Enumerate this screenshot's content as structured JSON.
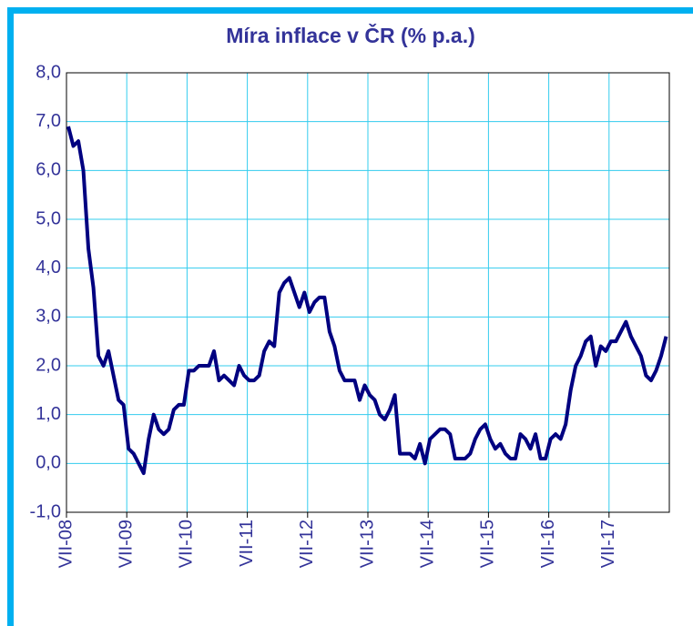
{
  "chart_data": {
    "type": "line",
    "title": "Míra inflace v ČR (% p.a.)",
    "categories": [
      "VII-08",
      null,
      null,
      null,
      null,
      null,
      null,
      null,
      null,
      null,
      null,
      null,
      "VII-09",
      null,
      null,
      null,
      null,
      null,
      null,
      null,
      null,
      null,
      null,
      null,
      "VII-10",
      null,
      null,
      null,
      null,
      null,
      null,
      null,
      null,
      null,
      null,
      null,
      "VII-11",
      null,
      null,
      null,
      null,
      null,
      null,
      null,
      null,
      null,
      null,
      null,
      "VII-12",
      null,
      null,
      null,
      null,
      null,
      null,
      null,
      null,
      null,
      null,
      null,
      "VII-13",
      null,
      null,
      null,
      null,
      null,
      null,
      null,
      null,
      null,
      null,
      null,
      "VII-14",
      null,
      null,
      null,
      null,
      null,
      null,
      null,
      null,
      null,
      null,
      null,
      "VII-15",
      null,
      null,
      null,
      null,
      null,
      null,
      null,
      null,
      null,
      null,
      null,
      "VII-16",
      null,
      null,
      null,
      null,
      null,
      null,
      null,
      null,
      null,
      null,
      null,
      "VII-17",
      null,
      null,
      null,
      null,
      null,
      null,
      null,
      null,
      null,
      null,
      null
    ],
    "values": [
      6.9,
      6.5,
      6.6,
      6.0,
      4.4,
      3.6,
      2.2,
      2.0,
      2.3,
      1.8,
      1.3,
      1.2,
      0.3,
      0.2,
      0.0,
      -0.2,
      0.5,
      1.0,
      0.7,
      0.6,
      0.7,
      1.1,
      1.2,
      1.2,
      1.9,
      1.9,
      2.0,
      2.0,
      2.0,
      2.3,
      1.7,
      1.8,
      1.7,
      1.6,
      2.0,
      1.8,
      1.7,
      1.7,
      1.8,
      2.3,
      2.5,
      2.4,
      3.5,
      3.7,
      3.8,
      3.5,
      3.2,
      3.5,
      3.1,
      3.3,
      3.4,
      3.4,
      2.7,
      2.4,
      1.9,
      1.7,
      1.7,
      1.7,
      1.3,
      1.6,
      1.4,
      1.3,
      1.0,
      0.9,
      1.1,
      1.4,
      0.2,
      0.2,
      0.2,
      0.1,
      0.4,
      0.0,
      0.5,
      0.6,
      0.7,
      0.7,
      0.6,
      0.1,
      0.1,
      0.1,
      0.2,
      0.5,
      0.7,
      0.8,
      0.5,
      0.3,
      0.4,
      0.2,
      0.1,
      0.1,
      0.6,
      0.5,
      0.3,
      0.6,
      0.1,
      0.1,
      0.5,
      0.6,
      0.5,
      0.8,
      1.5,
      2.0,
      2.2,
      2.5,
      2.6,
      2.0,
      2.4,
      2.3,
      2.5,
      2.5,
      2.7,
      2.9,
      2.6,
      2.4,
      2.2,
      1.8,
      1.7,
      1.9,
      2.2,
      2.6
    ],
    "color": "#000080",
    "ylim": [
      -1,
      8
    ],
    "yticks": [
      {
        "value": -1,
        "label": "-1,0"
      },
      {
        "value": 0,
        "label": "0,0"
      },
      {
        "value": 1,
        "label": "1,0"
      },
      {
        "value": 2,
        "label": "2,0"
      },
      {
        "value": 3,
        "label": "3,0"
      },
      {
        "value": 4,
        "label": "4,0"
      },
      {
        "value": 5,
        "label": "5,0"
      },
      {
        "value": 6,
        "label": "6,0"
      },
      {
        "value": 7,
        "label": "7,0"
      },
      {
        "value": 8,
        "label": "8,0"
      }
    ],
    "grid": true
  }
}
